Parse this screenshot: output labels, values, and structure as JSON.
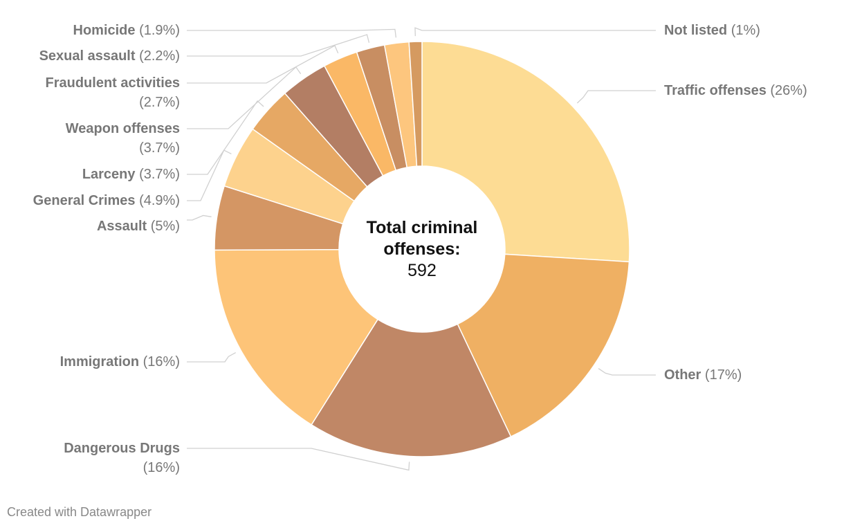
{
  "chart_data": {
    "type": "pie",
    "donut": true,
    "center_title": "Total criminal offenses:",
    "center_value": "592",
    "slices": [
      {
        "label": "Traffic offenses",
        "value": 26,
        "value_label": "(26%)",
        "color": "#fddc94"
      },
      {
        "label": "Other",
        "value": 17,
        "value_label": "(17%)",
        "color": "#efb063"
      },
      {
        "label": "Dangerous Drugs",
        "value": 16,
        "value_label": "(16%)",
        "color": "#c08766"
      },
      {
        "label": "Immigration",
        "value": 16,
        "value_label": "(16%)",
        "color": "#fdc478"
      },
      {
        "label": "Assault",
        "value": 5,
        "value_label": "(5%)",
        "color": "#d49664"
      },
      {
        "label": "General Crimes",
        "value": 4.9,
        "value_label": "(4.9%)",
        "color": "#fdd28d"
      },
      {
        "label": "Larceny",
        "value": 3.7,
        "value_label": "(3.7%)",
        "color": "#e6a864"
      },
      {
        "label": "Weapon offenses",
        "value": 3.7,
        "value_label": "(3.7%)",
        "color": "#b37e64"
      },
      {
        "label": "Fraudulent activities",
        "value": 2.7,
        "value_label": "(2.7%)",
        "color": "#fab866"
      },
      {
        "label": "Sexual assault",
        "value": 2.2,
        "value_label": "(2.2%)",
        "color": "#c88e62"
      },
      {
        "label": "Homicide",
        "value": 1.9,
        "value_label": "(1.9%)",
        "color": "#fdc67e"
      },
      {
        "label": "Not listed",
        "value": 1,
        "value_label": "(1%)",
        "color": "#d59a60"
      }
    ]
  },
  "footer": "Created with Datawrapper"
}
